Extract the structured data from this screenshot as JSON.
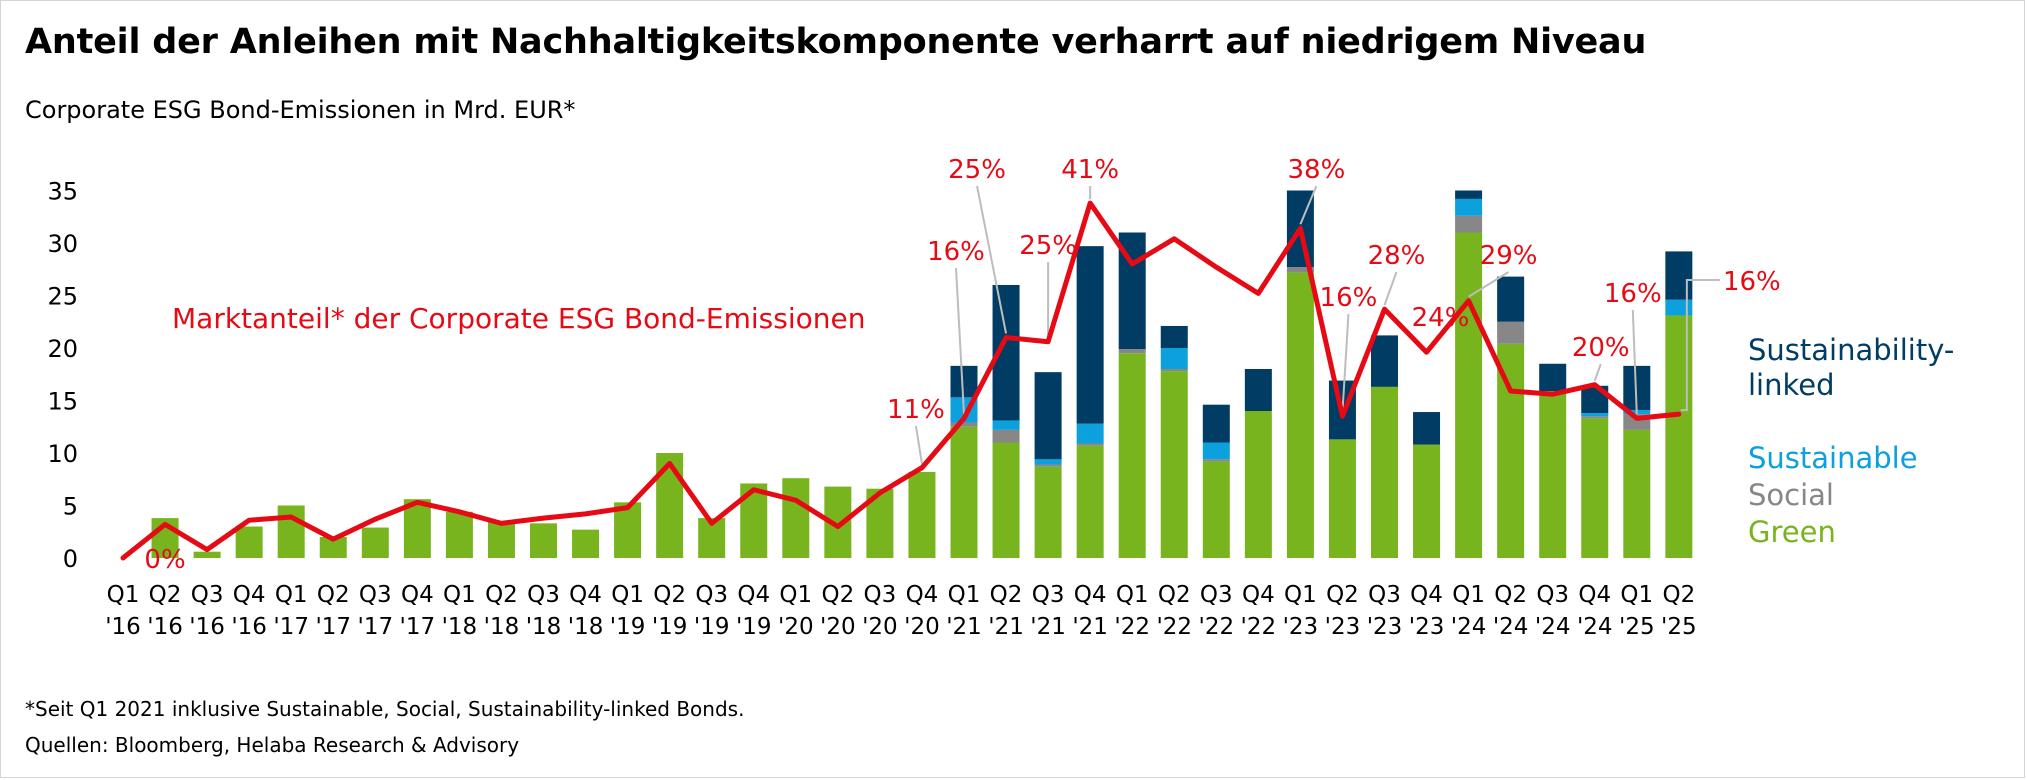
{
  "title": "Anteil der Anleihen mit Nachhaltigkeitskomponente verharrt auf niedrigem Niveau",
  "subtitle": "Corporate ESG Bond-Emissionen in Mrd. EUR*",
  "footnote": "*Seit Q1 2021 inklusive Sustainable, Social, Sustainability-linked Bonds.",
  "source": "Quellen: Bloomberg, Helaba Research & Advisory",
  "colors": {
    "green": "#78b41e",
    "social": "#878787",
    "sustainable": "#0ca0dc",
    "sustainability_linked": "#003c64",
    "line": "#e60a14"
  },
  "chart_data": {
    "type": "bar",
    "stacked": true,
    "ylim": [
      0,
      35
    ],
    "yticks": [
      0,
      5,
      10,
      15,
      20,
      25,
      30,
      35
    ],
    "categories": [
      [
        "Q1",
        "'16"
      ],
      [
        "Q2",
        "'16"
      ],
      [
        "Q3",
        "'16"
      ],
      [
        "Q4",
        "'16"
      ],
      [
        "Q1",
        "'17"
      ],
      [
        "Q2",
        "'17"
      ],
      [
        "Q3",
        "'17"
      ],
      [
        "Q4",
        "'17"
      ],
      [
        "Q1",
        "'18"
      ],
      [
        "Q2",
        "'18"
      ],
      [
        "Q3",
        "'18"
      ],
      [
        "Q4",
        "'18"
      ],
      [
        "Q1",
        "'19"
      ],
      [
        "Q2",
        "'19"
      ],
      [
        "Q3",
        "'19"
      ],
      [
        "Q4",
        "'19"
      ],
      [
        "Q1",
        "'20"
      ],
      [
        "Q2",
        "'20"
      ],
      [
        "Q3",
        "'20"
      ],
      [
        "Q4",
        "'20"
      ],
      [
        "Q1",
        "'21"
      ],
      [
        "Q2",
        "'21"
      ],
      [
        "Q3",
        "'21"
      ],
      [
        "Q4",
        "'21"
      ],
      [
        "Q1",
        "'22"
      ],
      [
        "Q2",
        "'22"
      ],
      [
        "Q3",
        "'22"
      ],
      [
        "Q4",
        "'22"
      ],
      [
        "Q1",
        "'23"
      ],
      [
        "Q2",
        "'23"
      ],
      [
        "Q3",
        "'23"
      ],
      [
        "Q4",
        "'23"
      ],
      [
        "Q1",
        "'24"
      ],
      [
        "Q2",
        "'24"
      ],
      [
        "Q3",
        "'24"
      ],
      [
        "Q4",
        "'24"
      ],
      [
        "Q1",
        "'25"
      ],
      [
        "Q2",
        "'25"
      ]
    ],
    "series": [
      {
        "name": "Green",
        "color_key": "green",
        "values": [
          0,
          3.8,
          0.6,
          3.0,
          5.0,
          2.0,
          2.9,
          5.6,
          4.4,
          3.4,
          3.3,
          2.7,
          5.3,
          10.0,
          3.8,
          7.1,
          7.6,
          6.8,
          6.6,
          8.2,
          12.5,
          11.0,
          8.7,
          10.7,
          19.5,
          17.8,
          9.2,
          14.0,
          27.2,
          11.3,
          16.3,
          10.8,
          31.0,
          20.4,
          15.9,
          13.3,
          12.2,
          23.1
        ]
      },
      {
        "name": "Social",
        "color_key": "social",
        "values": [
          0,
          0,
          0,
          0,
          0,
          0,
          0,
          0,
          0,
          0,
          0,
          0,
          0,
          0,
          0,
          0,
          0,
          0,
          0,
          0,
          0.4,
          1.2,
          0.2,
          0.2,
          0.4,
          0.2,
          0.2,
          0,
          0.5,
          0,
          0,
          0,
          1.6,
          2.1,
          0,
          0.2,
          1.5,
          0
        ]
      },
      {
        "name": "Sustainable",
        "color_key": "sustainable",
        "values": [
          0,
          0,
          0,
          0,
          0,
          0,
          0,
          0,
          0,
          0,
          0,
          0,
          0,
          0,
          0,
          0,
          0,
          0,
          0,
          0,
          2.4,
          0.9,
          0.5,
          1.9,
          0,
          2.0,
          1.6,
          0,
          0,
          0,
          0,
          0,
          1.6,
          0,
          0,
          0.3,
          0.4,
          1.5
        ]
      },
      {
        "name": "Sustainability-linked",
        "color_key": "sustainability_linked",
        "values": [
          0,
          0,
          0,
          0,
          0,
          0,
          0,
          0,
          0,
          0,
          0,
          0,
          0,
          0,
          0,
          0,
          0,
          0,
          0,
          0,
          3.0,
          12.9,
          8.3,
          16.9,
          11.1,
          2.1,
          3.6,
          4.0,
          7.3,
          5.6,
          4.9,
          3.1,
          0.8,
          4.3,
          2.6,
          2.6,
          4.2,
          4.6
        ]
      }
    ],
    "line": {
      "name": "Marktanteil* der Corporate ESG Bond-Emissionen",
      "values": [
        0,
        3.2,
        0.8,
        3.6,
        3.9,
        1.8,
        3.7,
        5.3,
        4.4,
        3.3,
        3.8,
        4.2,
        4.8,
        9.0,
        3.3,
        6.5,
        5.5,
        3.0,
        6.2,
        8.6,
        13.3,
        21.0,
        20.6,
        33.8,
        28.0,
        30.4,
        27.7,
        25.2,
        31.4,
        13.5,
        23.7,
        19.6,
        24.5,
        15.9,
        15.6,
        16.5,
        13.3,
        13.7
      ],
      "labels": [
        {
          "text": "0%",
          "index": 1
        },
        {
          "text": "11%",
          "index": 19
        },
        {
          "text": "16%",
          "index": 20
        },
        {
          "text": "25%",
          "index": 21
        },
        {
          "text": "25%",
          "index": 22
        },
        {
          "text": "41%",
          "index": 23
        },
        {
          "text": "38%",
          "index": 28
        },
        {
          "text": "16%",
          "index": 29
        },
        {
          "text": "28%",
          "index": 30
        },
        {
          "text": "24%",
          "index": 31
        },
        {
          "text": "29%",
          "index": 32
        },
        {
          "text": "20%",
          "index": 35
        },
        {
          "text": "16%",
          "index": 36
        },
        {
          "text": "16%",
          "index": 37
        }
      ]
    },
    "legend": [
      "Sustainability-\nlinked",
      "Sustainable",
      "Social",
      "Green"
    ]
  }
}
